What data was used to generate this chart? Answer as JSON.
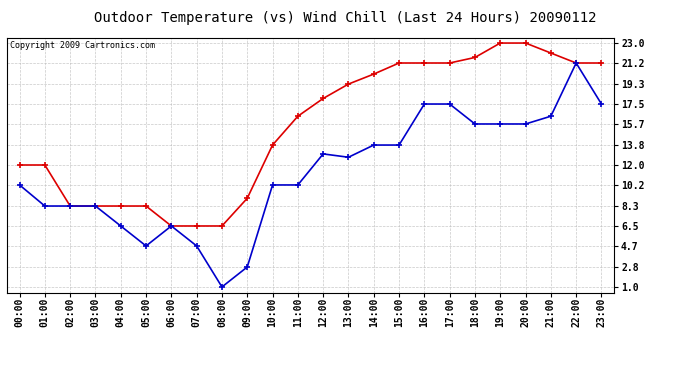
{
  "title": "Outdoor Temperature (vs) Wind Chill (Last 24 Hours) 20090112",
  "copyright": "Copyright 2009 Cartronics.com",
  "x_labels": [
    "00:00",
    "01:00",
    "02:00",
    "03:00",
    "04:00",
    "05:00",
    "06:00",
    "07:00",
    "08:00",
    "09:00",
    "10:00",
    "11:00",
    "12:00",
    "13:00",
    "14:00",
    "15:00",
    "16:00",
    "17:00",
    "18:00",
    "19:00",
    "20:00",
    "21:00",
    "22:00",
    "23:00"
  ],
  "yticks": [
    1.0,
    2.8,
    4.7,
    6.5,
    8.3,
    10.2,
    12.0,
    13.8,
    15.7,
    17.5,
    19.3,
    21.2,
    23.0
  ],
  "ylim": [
    0.5,
    23.5
  ],
  "red_data": [
    12.0,
    12.0,
    8.3,
    8.3,
    8.3,
    8.3,
    6.5,
    6.5,
    6.5,
    9.0,
    13.8,
    16.4,
    18.0,
    19.3,
    20.2,
    21.2,
    21.2,
    21.2,
    21.7,
    23.0,
    23.0,
    22.1,
    21.2,
    21.2
  ],
  "blue_data": [
    10.2,
    8.3,
    8.3,
    8.3,
    6.5,
    4.7,
    6.5,
    4.7,
    1.0,
    2.8,
    10.2,
    10.2,
    13.0,
    12.7,
    13.8,
    13.8,
    17.5,
    17.5,
    15.7,
    15.7,
    15.7,
    16.4,
    21.2,
    17.5
  ],
  "red_color": "#dd0000",
  "blue_color": "#0000cc",
  "bg_color": "#ffffff",
  "grid_color": "#bbbbbb",
  "title_fontsize": 10,
  "tick_fontsize": 7,
  "copyright_fontsize": 6
}
